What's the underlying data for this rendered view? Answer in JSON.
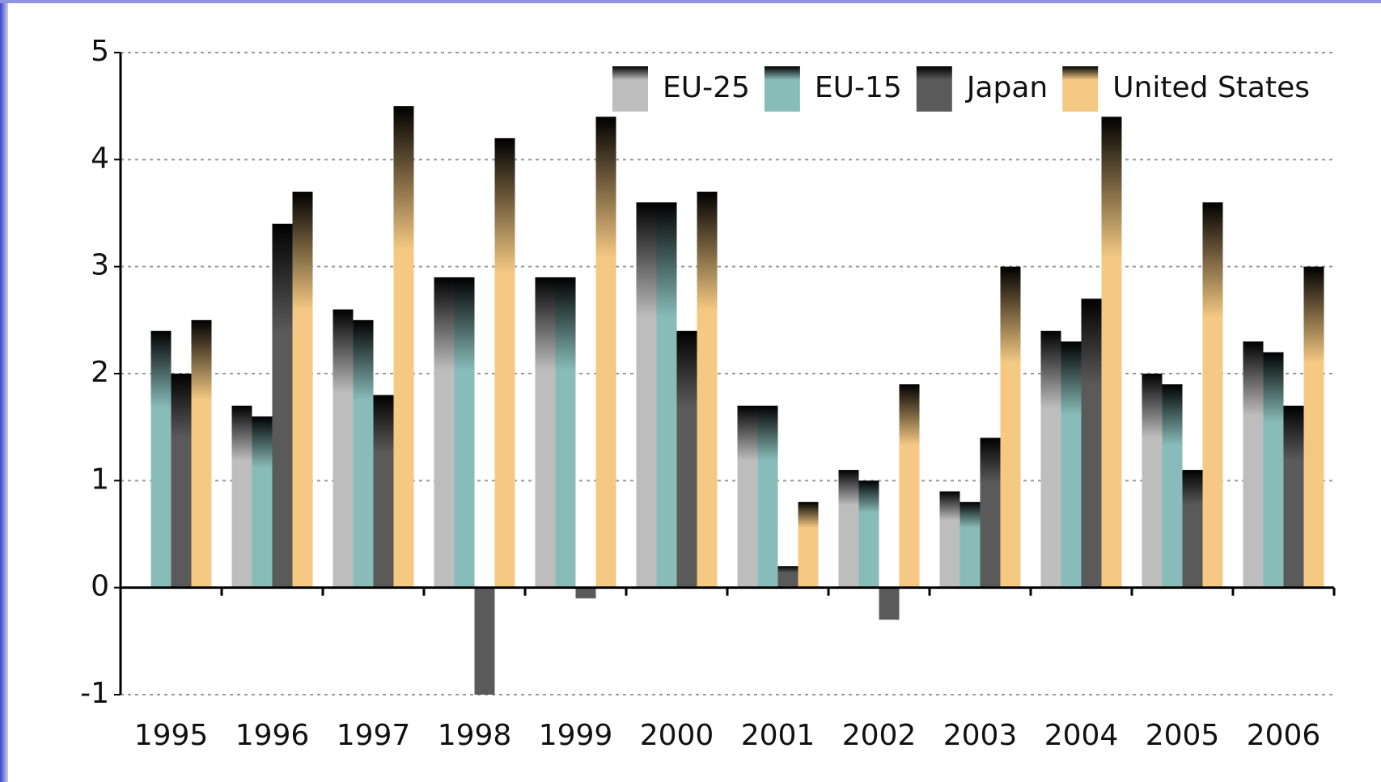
{
  "chart_data": {
    "type": "bar",
    "categories": [
      "1995",
      "1996",
      "1997",
      "1998",
      "1999",
      "2000",
      "2001",
      "2002",
      "2003",
      "2004",
      "2005",
      "2006"
    ],
    "series": [
      {
        "name": "EU-25",
        "color": "#bdbdbd",
        "values": [
          null,
          1.7,
          2.6,
          2.9,
          2.9,
          3.6,
          1.7,
          1.1,
          0.9,
          2.4,
          2.0,
          2.3
        ]
      },
      {
        "name": "EU-15",
        "color": "#88bcb9",
        "values": [
          2.4,
          1.6,
          2.5,
          2.9,
          2.9,
          3.6,
          1.7,
          1.0,
          0.8,
          2.3,
          1.9,
          2.2
        ]
      },
      {
        "name": "Japan",
        "color": "#5a5a5a",
        "values": [
          2.0,
          3.4,
          1.8,
          -1.0,
          -0.1,
          2.4,
          0.2,
          -0.3,
          1.4,
          2.7,
          1.1,
          1.7
        ]
      },
      {
        "name": "United States",
        "color": "#f5c983",
        "values": [
          2.5,
          3.7,
          4.5,
          4.2,
          4.4,
          3.7,
          0.8,
          1.9,
          3.0,
          4.4,
          3.6,
          3.0
        ]
      }
    ],
    "ylim": [
      -1,
      5
    ],
    "yticks": [
      -1,
      0,
      1,
      2,
      3,
      4,
      5
    ],
    "grid": true,
    "legend": "top-right"
  }
}
